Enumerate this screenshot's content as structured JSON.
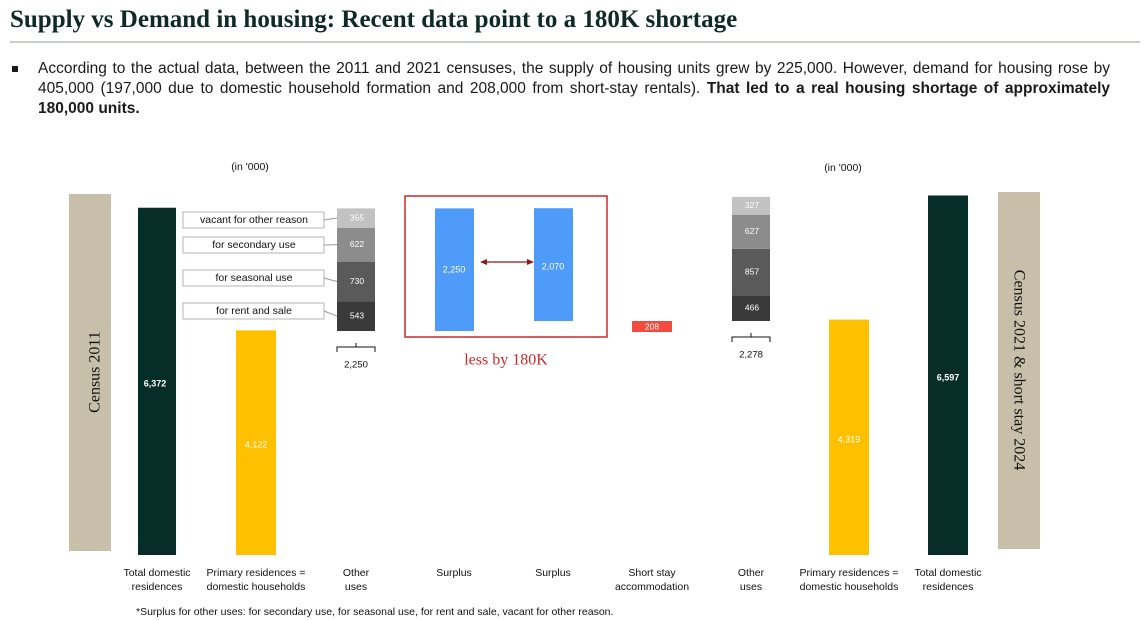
{
  "title": "Supply vs Demand in housing: Recent data point to a 180K shortage",
  "bullet": {
    "text": "According to the actual data, between the 2011 and 2021 censuses, the supply of housing units grew by 225,000. However, demand for housing rose by 405,000 (197,000 due to domestic household formation and 208,000 from short-stay rentals).",
    "bold": "That led to a real housing shortage of approximately 180,000 units."
  },
  "footnote": "*Surplus for other uses: for secondary use, for seasonal use, for rent and sale, vacant for other reason.",
  "colors": {
    "dark": "#062d27",
    "yellow": "#ffc000",
    "blue": "#4f9bf9",
    "red": "#f24b3f",
    "beige": "#c8bfaa",
    "highlight": "#cc2a2a"
  },
  "chart_data": {
    "type": "bar",
    "units": "(in '000)",
    "left_panel_label": "Census 2011",
    "right_panel_label": "Census 2021 & short stay 2024",
    "categories": [
      "Total domestic residences",
      "Primary residences = domestic households",
      "Other uses",
      "Surplus",
      "Surplus",
      "Short stay accommodation",
      "Other uses",
      "Primary residences = domestic households",
      "Total domestic residences"
    ],
    "bars": [
      {
        "category": "Total domestic residences",
        "value": 6372,
        "label": "6,372",
        "color": "dark"
      },
      {
        "category": "Primary residences = domestic households",
        "value": 4122,
        "label": "4,122",
        "color": "yellow"
      },
      {
        "category": "Other uses",
        "total": 2250,
        "total_label": "2,250",
        "segments": [
          {
            "name": "for rent and sale",
            "value": 543,
            "label": "543"
          },
          {
            "name": "for seasonal use",
            "value": 730,
            "label": "730"
          },
          {
            "name": "for secondary use",
            "value": 622,
            "label": "622"
          },
          {
            "name": "vacant for other reason",
            "value": 355,
            "label": "355"
          }
        ]
      },
      {
        "category": "Surplus",
        "value": 2250,
        "label": "2,250",
        "color": "blue"
      },
      {
        "category": "Surplus",
        "value": 2070,
        "label": "2,070",
        "color": "blue"
      },
      {
        "category": "Short stay accommodation",
        "value": 208,
        "label": "208",
        "color": "red"
      },
      {
        "category": "Other uses",
        "total": 2278,
        "total_label": "2,278",
        "segments": [
          {
            "value": 466,
            "label": "466"
          },
          {
            "value": 857,
            "label": "857"
          },
          {
            "value": 627,
            "label": "627"
          },
          {
            "value": 327,
            "label": "327"
          }
        ]
      },
      {
        "category": "Primary residences = domestic households",
        "value": 4319,
        "label": "4,319",
        "color": "yellow"
      },
      {
        "category": "Total domestic residences",
        "value": 6597,
        "label": "6,597",
        "color": "dark"
      }
    ],
    "annotation": "less by 180K"
  }
}
